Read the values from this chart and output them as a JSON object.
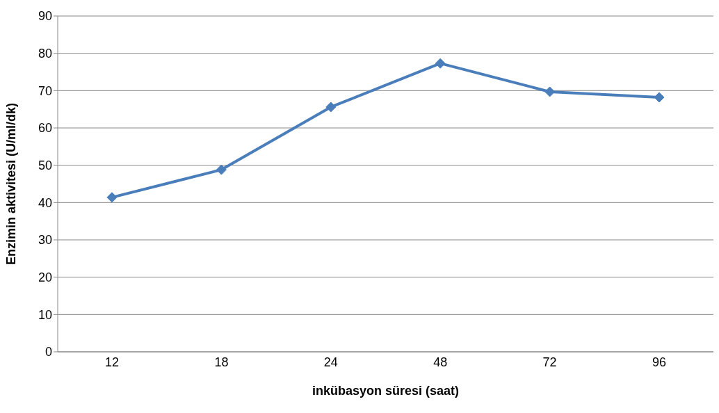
{
  "chart_data": {
    "type": "line",
    "xlabel": "inkübasyon süresi (saat)",
    "ylabel": "Enzimin aktivitesi (U/ml/dk)",
    "categories": [
      "12",
      "18",
      "24",
      "48",
      "72",
      "96"
    ],
    "series": [
      {
        "color": "#4a7ebb",
        "values": [
          41.4,
          48.8,
          65.6,
          77.3,
          69.7,
          68.2
        ]
      }
    ],
    "ylim": [
      0,
      90
    ],
    "yticks": [
      0,
      10,
      20,
      30,
      40,
      50,
      60,
      70,
      80,
      90
    ],
    "grid": "y",
    "legend": false,
    "marker": "diamond",
    "line_style": "solid"
  }
}
